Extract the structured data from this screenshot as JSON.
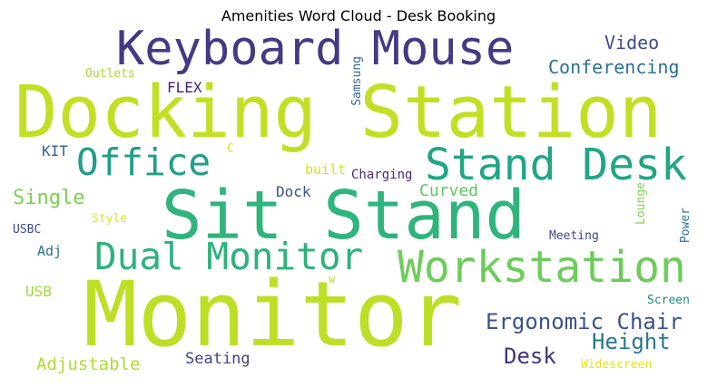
{
  "title": "Amenities Word Cloud - Desk Booking",
  "words": [
    {
      "text": "Keyboard Mouse",
      "color": "#443a83"
    },
    {
      "text": "Docking Station",
      "color": "#c2df23"
    },
    {
      "text": "Monitor",
      "color": "#bddf26"
    },
    {
      "text": "Sit Stand",
      "color": "#2fb47c"
    },
    {
      "text": "Stand Desk",
      "color": "#21a685"
    },
    {
      "text": "Office",
      "color": "#1f9e89"
    },
    {
      "text": "Workstation",
      "color": "#6ccd5a"
    },
    {
      "text": "Dual Monitor",
      "color": "#2db27d"
    },
    {
      "text": "Ergonomic Chair",
      "color": "#3b528b"
    },
    {
      "text": "Height",
      "color": "#2a788e"
    },
    {
      "text": "Desk",
      "color": "#46337e"
    },
    {
      "text": "Video",
      "color": "#3e4c8a"
    },
    {
      "text": "Conferencing",
      "color": "#2c718e"
    },
    {
      "text": "Single",
      "color": "#7ad151"
    },
    {
      "text": "Curved",
      "color": "#5ec962"
    },
    {
      "text": "Adjustable",
      "color": "#addc30"
    },
    {
      "text": "Seating",
      "color": "#414487"
    },
    {
      "text": "Dock",
      "color": "#3b528b"
    },
    {
      "text": "FLEX",
      "color": "#482173"
    },
    {
      "text": "Outlets",
      "color": "#a8db34"
    },
    {
      "text": "Samsung",
      "color": "#31688e"
    },
    {
      "text": "KIT",
      "color": "#33638d"
    },
    {
      "text": "built",
      "color": "#d8e219"
    },
    {
      "text": "Charging",
      "color": "#482979"
    },
    {
      "text": "USBC",
      "color": "#3e4a89"
    },
    {
      "text": "Style",
      "color": "#e5e419"
    },
    {
      "text": "Adj",
      "color": "#2e6f8e"
    },
    {
      "text": "USB",
      "color": "#9dd93b"
    },
    {
      "text": "C",
      "color": "#dde318"
    },
    {
      "text": "Meeting",
      "color": "#3f4889"
    },
    {
      "text": "Lounge",
      "color": "#7fd34e"
    },
    {
      "text": "Power",
      "color": "#2a768e"
    },
    {
      "text": "Screen",
      "color": "#23898e"
    },
    {
      "text": "Widescreen",
      "color": "#e2e418"
    },
    {
      "text": "w",
      "color": "#b5de2b"
    }
  ]
}
